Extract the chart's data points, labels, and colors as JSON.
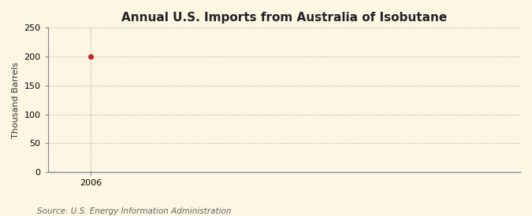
{
  "title": "Annual U.S. Imports from Australia of Isobutane",
  "ylabel": "Thousand Barrels",
  "source_text": "Source: U.S. Energy Information Administration",
  "x_data": [
    2006
  ],
  "y_data": [
    200
  ],
  "xlim": [
    2005.4,
    2012
  ],
  "ylim": [
    0,
    250
  ],
  "yticks": [
    0,
    50,
    100,
    150,
    200,
    250
  ],
  "xticks": [
    2006
  ],
  "background_color": "#fdf6e3",
  "plot_bg_color": "#fdf6e3",
  "grid_color": "#aaaaaa",
  "point_color": "#cc2222",
  "title_fontsize": 11,
  "label_fontsize": 8,
  "source_fontsize": 7.5,
  "tick_fontsize": 8
}
